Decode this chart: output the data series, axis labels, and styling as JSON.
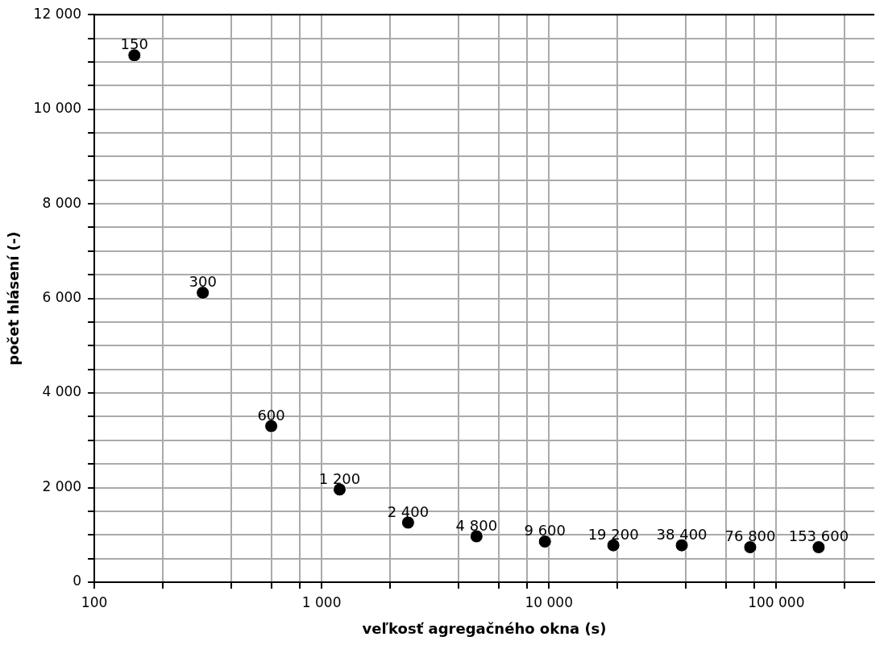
{
  "chart_data": {
    "type": "scatter",
    "xlabel": "veľkosť agregačného okna (s)",
    "ylabel": "počet hlásení (-)",
    "log": "x",
    "grid": true,
    "marker": "circle",
    "legend": false,
    "xlim": [
      100,
      270000
    ],
    "xticks": [
      100,
      {
        "value": 200,
        "label": null
      },
      {
        "value": 400,
        "label": null
      },
      {
        "value": 600,
        "label": null
      },
      {
        "value": 800,
        "label": null
      },
      {
        "value": 1000,
        "label": "1 000"
      },
      {
        "value": 2000,
        "label": null
      },
      {
        "value": 4000,
        "label": null
      },
      {
        "value": 6000,
        "label": null
      },
      {
        "value": 8000,
        "label": null
      },
      {
        "value": 10000,
        "label": "10 000"
      },
      {
        "value": 20000,
        "label": null
      },
      {
        "value": 40000,
        "label": null
      },
      {
        "value": 60000,
        "label": null
      },
      {
        "value": 80000,
        "label": null
      },
      {
        "value": 100000,
        "label": "100 000"
      },
      {
        "value": 200000,
        "label": null
      }
    ],
    "ylim": [
      0,
      12000
    ],
    "yticks": [
      0,
      {
        "value": 500,
        "label": null
      },
      {
        "value": 1000,
        "label": null
      },
      {
        "value": 1500,
        "label": null
      },
      {
        "value": 2000,
        "label": "2 000"
      },
      {
        "value": 2500,
        "label": null
      },
      {
        "value": 3000,
        "label": null
      },
      {
        "value": 3500,
        "label": null
      },
      {
        "value": 4000,
        "label": "4 000"
      },
      {
        "value": 4500,
        "label": null
      },
      {
        "value": 5000,
        "label": null
      },
      {
        "value": 5500,
        "label": null
      },
      {
        "value": 6000,
        "label": "6 000"
      },
      {
        "value": 6500,
        "label": null
      },
      {
        "value": 7000,
        "label": null
      },
      {
        "value": 7500,
        "label": null
      },
      {
        "value": 8000,
        "label": "8 000"
      },
      {
        "value": 8500,
        "label": null
      },
      {
        "value": 9000,
        "label": null
      },
      {
        "value": 9500,
        "label": null
      },
      {
        "value": 10000,
        "label": "10 000"
      },
      {
        "value": 10500,
        "label": null
      },
      {
        "value": 11000,
        "label": null
      },
      {
        "value": 11500,
        "label": null
      },
      {
        "value": 12000,
        "label": "12 000"
      }
    ],
    "x": [
      150,
      300,
      600,
      1200,
      2400,
      4800,
      9600,
      19200,
      38400,
      76800,
      153600
    ],
    "series": [
      {
        "color": "#000000",
        "values": [
          11140,
          6120,
          3300,
          1960,
          1260,
          970,
          860,
          780,
          780,
          740,
          740
        ]
      }
    ],
    "annotations": [
      {
        "text": "150",
        "x": 150,
        "y": 11140
      },
      {
        "text": "300",
        "x": 300,
        "y": 6120
      },
      {
        "text": "600",
        "x": 600,
        "y": 3300
      },
      {
        "text": "1 200",
        "x": 1200,
        "y": 1960
      },
      {
        "text": "2 400",
        "x": 2400,
        "y": 1260
      },
      {
        "text": "4 800",
        "x": 4800,
        "y": 970
      },
      {
        "text": "9 600",
        "x": 9600,
        "y": 860
      },
      {
        "text": "19 200",
        "x": 19200,
        "y": 780
      },
      {
        "text": "38 400",
        "x": 38400,
        "y": 780
      },
      {
        "text": "76 800",
        "x": 76800,
        "y": 740
      },
      {
        "text": "153 600",
        "x": 153600,
        "y": 740
      }
    ]
  }
}
